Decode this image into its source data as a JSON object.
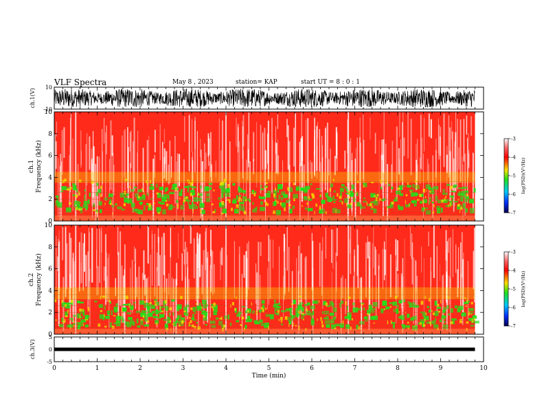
{
  "header": {
    "title": "VLF Spectra",
    "date": "May 8 , 2023",
    "station": "station= KAP",
    "start": "start UT = 8 : 0 : 1"
  },
  "colors": {
    "axis": "#000000",
    "waveform": "#000000",
    "spec_background": "#ff2a1a",
    "spec_band": "#22e01a",
    "spec_edge": "#f0e000",
    "spec_white": "#ffffff"
  },
  "chart_data": [
    {
      "id": "ch1_waveform",
      "type": "line",
      "ylabel": "ch.1(V)",
      "ylim": [
        -10,
        10
      ],
      "yticks": [
        "10",
        "-10"
      ],
      "xlim": [
        0,
        10
      ],
      "x_unit": "min",
      "data_end": 9.8,
      "amplitude_range": [
        -8,
        9
      ],
      "series": [
        {
          "description_color": "#000000"
        }
      ]
    },
    {
      "id": "ch1_spectrogram",
      "type": "heatmap",
      "ylabel": "ch.1 Frequency (kHz)",
      "ylim": [
        0,
        10
      ],
      "yticks": [
        "0",
        "2",
        "4",
        "6",
        "8",
        "10"
      ],
      "xlim": [
        0,
        10
      ],
      "data_end": 9.8,
      "color_scale": {
        "label": "log(PSD)(V²/Hz)",
        "range": [
          -7,
          -3
        ],
        "ticks": [
          "-3",
          "-4",
          "-5",
          "-6",
          "-7"
        ]
      },
      "strong_band_khz": [
        1.0,
        3.5
      ],
      "edge_band_khz": [
        3.5,
        4.5
      ],
      "bright_lines_min": [
        0.5,
        4.0,
        6.85
      ]
    },
    {
      "id": "ch2_spectrogram",
      "type": "heatmap",
      "ylabel": "ch.2 Frequency (kHz)",
      "ylim": [
        0,
        10
      ],
      "yticks": [
        "0",
        "2",
        "4",
        "6",
        "8",
        "10"
      ],
      "xlim": [
        0,
        10
      ],
      "data_end": 9.8,
      "color_scale": {
        "label": "log(PSD)(V²/Hz)",
        "range": [
          -7,
          -3
        ],
        "ticks": [
          "-3",
          "-4",
          "-5",
          "-6",
          "-7"
        ]
      },
      "strong_band_khz": [
        0.8,
        3.2
      ],
      "edge_band_khz": [
        3.2,
        4.3
      ],
      "bright_lines_min": [
        0.5,
        4.0,
        6.85
      ]
    },
    {
      "id": "ch3_waveform",
      "type": "line",
      "ylabel": "ch.3(V)",
      "ylim": [
        -5,
        5
      ],
      "yticks": [
        "5",
        "0",
        "-5"
      ],
      "xlim": [
        0,
        10
      ],
      "data_end": 9.8,
      "level_band": [
        -0.7,
        0.7
      ],
      "xlabel": "Time (min)",
      "xticks": [
        "0",
        "1",
        "2",
        "3",
        "4",
        "5",
        "6",
        "7",
        "8",
        "9",
        "10"
      ]
    }
  ]
}
